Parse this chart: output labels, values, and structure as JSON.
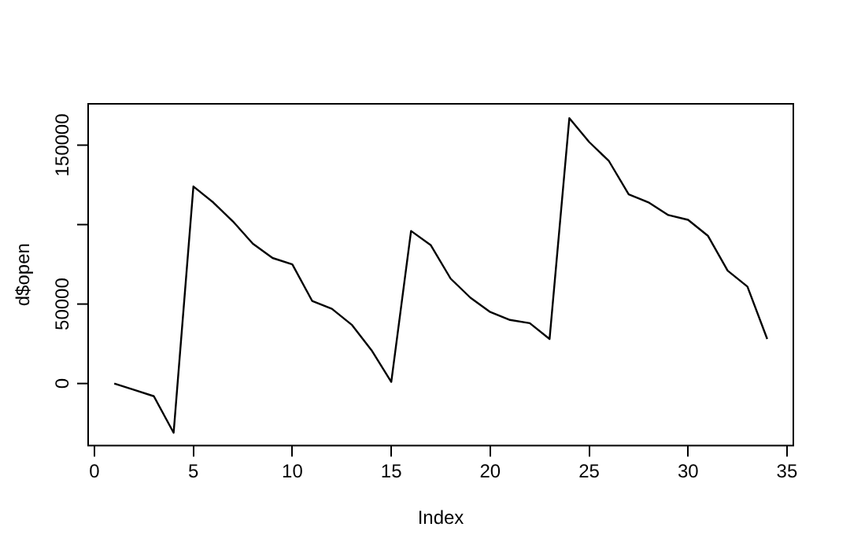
{
  "chart_data": {
    "type": "line",
    "xlabel": "Index",
    "ylabel": "d$open",
    "x": [
      1,
      2,
      3,
      4,
      5,
      6,
      7,
      8,
      9,
      10,
      11,
      12,
      13,
      14,
      15,
      16,
      17,
      18,
      19,
      20,
      21,
      22,
      23,
      24,
      25,
      26,
      27,
      28,
      29,
      30,
      31,
      32,
      33,
      34
    ],
    "series": [
      {
        "color": "#000000",
        "values": [
          0,
          -4000,
          -8000,
          -31000,
          124000,
          114000,
          102000,
          88000,
          79000,
          75000,
          52000,
          47000,
          37000,
          21000,
          1000,
          96000,
          87000,
          66000,
          54000,
          45000,
          40000,
          38000,
          28000,
          167000,
          152000,
          140000,
          119000,
          114000,
          106000,
          103000,
          93000,
          71000,
          61000,
          28000
        ]
      }
    ],
    "xlim": [
      -0.32,
      35.32
    ],
    "xticks": [
      0,
      5,
      10,
      15,
      20,
      25,
      30,
      35
    ],
    "ylim": [
      -39000,
      176000
    ],
    "yticks": [
      0,
      50000,
      {
        "value": 100000,
        "label": null
      },
      150000
    ],
    "grid": false,
    "legend": false,
    "marker": "none",
    "line_style": "solid"
  }
}
